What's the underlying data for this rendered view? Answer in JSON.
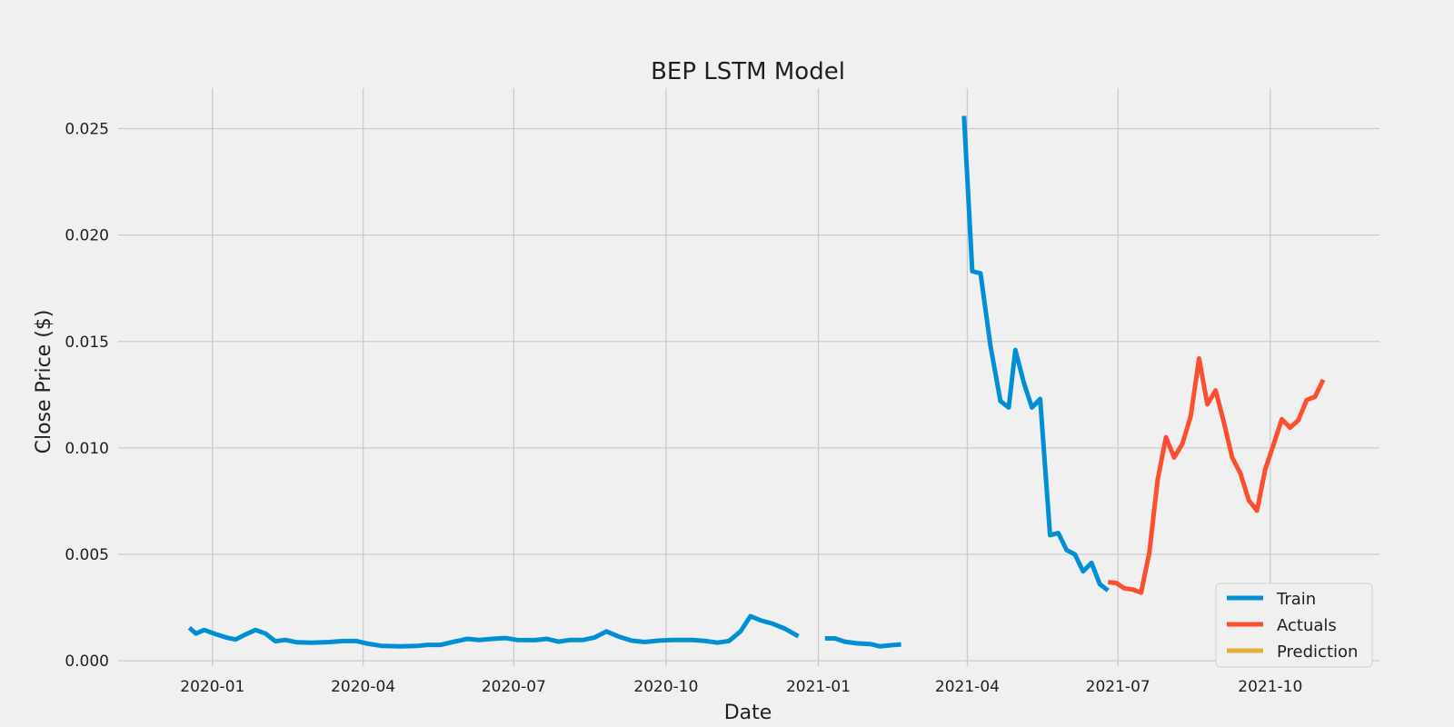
{
  "chart_data": {
    "type": "line",
    "title": "BEP LSTM Model",
    "xlabel": "Date",
    "ylabel": "Close Price ($)",
    "x_type": "date",
    "xlim": [
      "2019-11-05",
      "2021-12-06"
    ],
    "ylim": [
      -0.00025,
      0.0269
    ],
    "x_ticks": [
      "2020-01",
      "2020-04",
      "2020-07",
      "2020-10",
      "2021-01",
      "2021-04",
      "2021-07",
      "2021-10"
    ],
    "y_ticks": [
      "0.000",
      "0.005",
      "0.010",
      "0.015",
      "0.020",
      "0.025"
    ],
    "grid": true,
    "legend_position": "lower right",
    "series": [
      {
        "name": "Train",
        "color": "#008fd5",
        "segments": [
          [
            [
              "2019-12-18",
              0.00155
            ],
            [
              "2019-12-22",
              0.00128
            ],
            [
              "2019-12-27",
              0.00145
            ],
            [
              "2020-01-03",
              0.00125
            ],
            [
              "2020-01-10",
              0.00108
            ],
            [
              "2020-01-15",
              0.001
            ],
            [
              "2020-01-20",
              0.0012
            ],
            [
              "2020-01-27",
              0.00145
            ],
            [
              "2020-02-02",
              0.00128
            ],
            [
              "2020-02-08",
              0.00092
            ],
            [
              "2020-02-14",
              0.00098
            ],
            [
              "2020-02-21",
              0.00087
            ],
            [
              "2020-03-01",
              0.00085
            ],
            [
              "2020-03-12",
              0.00088
            ],
            [
              "2020-03-20",
              0.00093
            ],
            [
              "2020-03-28",
              0.00093
            ],
            [
              "2020-04-04",
              0.0008
            ],
            [
              "2020-04-12",
              0.0007
            ],
            [
              "2020-04-24",
              0.00068
            ],
            [
              "2020-05-04",
              0.0007
            ],
            [
              "2020-05-10",
              0.00075
            ],
            [
              "2020-05-18",
              0.00075
            ],
            [
              "2020-05-26",
              0.0009
            ],
            [
              "2020-06-03",
              0.00103
            ],
            [
              "2020-06-10",
              0.00098
            ],
            [
              "2020-06-18",
              0.00103
            ],
            [
              "2020-06-26",
              0.00107
            ],
            [
              "2020-07-03",
              0.00098
            ],
            [
              "2020-07-14",
              0.00097
            ],
            [
              "2020-07-21",
              0.00103
            ],
            [
              "2020-07-28",
              0.0009
            ],
            [
              "2020-08-04",
              0.00098
            ],
            [
              "2020-08-12",
              0.00098
            ],
            [
              "2020-08-19",
              0.0011
            ],
            [
              "2020-08-26",
              0.00138
            ],
            [
              "2020-09-02",
              0.00115
            ],
            [
              "2020-09-10",
              0.00095
            ],
            [
              "2020-09-18",
              0.00088
            ],
            [
              "2020-09-27",
              0.00095
            ],
            [
              "2020-10-05",
              0.00098
            ],
            [
              "2020-10-17",
              0.00098
            ],
            [
              "2020-10-25",
              0.00093
            ],
            [
              "2020-11-01",
              0.00085
            ],
            [
              "2020-11-08",
              0.00093
            ],
            [
              "2020-11-15",
              0.00138
            ],
            [
              "2020-11-21",
              0.0021
            ],
            [
              "2020-11-27",
              0.0019
            ],
            [
              "2020-12-04",
              0.00175
            ],
            [
              "2020-12-12",
              0.0015
            ],
            [
              "2020-12-20",
              0.00115
            ]
          ],
          [
            [
              "2021-01-05",
              0.00105
            ],
            [
              "2021-01-11",
              0.00105
            ],
            [
              "2021-01-17",
              0.0009
            ],
            [
              "2021-01-24",
              0.00082
            ],
            [
              "2021-02-02",
              0.00078
            ],
            [
              "2021-02-07",
              0.00068
            ],
            [
              "2021-02-14",
              0.00073
            ],
            [
              "2021-02-20",
              0.00077
            ]
          ],
          [
            [
              "2021-03-30",
              0.0256
            ],
            [
              "2021-04-04",
              0.0183
            ],
            [
              "2021-04-09",
              0.0182
            ],
            [
              "2021-04-15",
              0.0148
            ],
            [
              "2021-04-21",
              0.0122
            ],
            [
              "2021-04-26",
              0.0119
            ],
            [
              "2021-04-30",
              0.0146
            ],
            [
              "2021-05-05",
              0.0131
            ],
            [
              "2021-05-10",
              0.0119
            ],
            [
              "2021-05-15",
              0.0123
            ],
            [
              "2021-05-21",
              0.0059
            ],
            [
              "2021-05-26",
              0.006
            ],
            [
              "2021-05-31",
              0.0052
            ],
            [
              "2021-06-05",
              0.005
            ],
            [
              "2021-06-10",
              0.0042
            ],
            [
              "2021-06-15",
              0.0046
            ],
            [
              "2021-06-20",
              0.0036
            ],
            [
              "2021-06-25",
              0.0033
            ]
          ]
        ]
      },
      {
        "name": "Actuals",
        "color": "#fc4f30",
        "segments": [
          [
            [
              "2021-06-25",
              0.0037
            ],
            [
              "2021-06-30",
              0.00365
            ],
            [
              "2021-07-05",
              0.0034
            ],
            [
              "2021-07-10",
              0.00335
            ],
            [
              "2021-07-15",
              0.0032
            ],
            [
              "2021-07-20",
              0.0051
            ],
            [
              "2021-07-25",
              0.0085
            ],
            [
              "2021-07-30",
              0.0105
            ],
            [
              "2021-08-04",
              0.00955
            ],
            [
              "2021-08-09",
              0.0102
            ],
            [
              "2021-08-14",
              0.0115
            ],
            [
              "2021-08-19",
              0.0142
            ],
            [
              "2021-08-24",
              0.01205
            ],
            [
              "2021-08-29",
              0.0127
            ],
            [
              "2021-09-03",
              0.0112
            ],
            [
              "2021-09-08",
              0.00955
            ],
            [
              "2021-09-13",
              0.0088
            ],
            [
              "2021-09-18",
              0.00755
            ],
            [
              "2021-09-23",
              0.00705
            ],
            [
              "2021-09-28",
              0.009
            ],
            [
              "2021-10-03",
              0.01015
            ],
            [
              "2021-10-08",
              0.01135
            ],
            [
              "2021-10-13",
              0.01095
            ],
            [
              "2021-10-18",
              0.0113
            ],
            [
              "2021-10-23",
              0.01225
            ],
            [
              "2021-10-28",
              0.0124
            ],
            [
              "2021-11-02",
              0.0132
            ]
          ]
        ]
      },
      {
        "name": "Prediction",
        "color": "#e5ae38",
        "segments": []
      }
    ]
  }
}
